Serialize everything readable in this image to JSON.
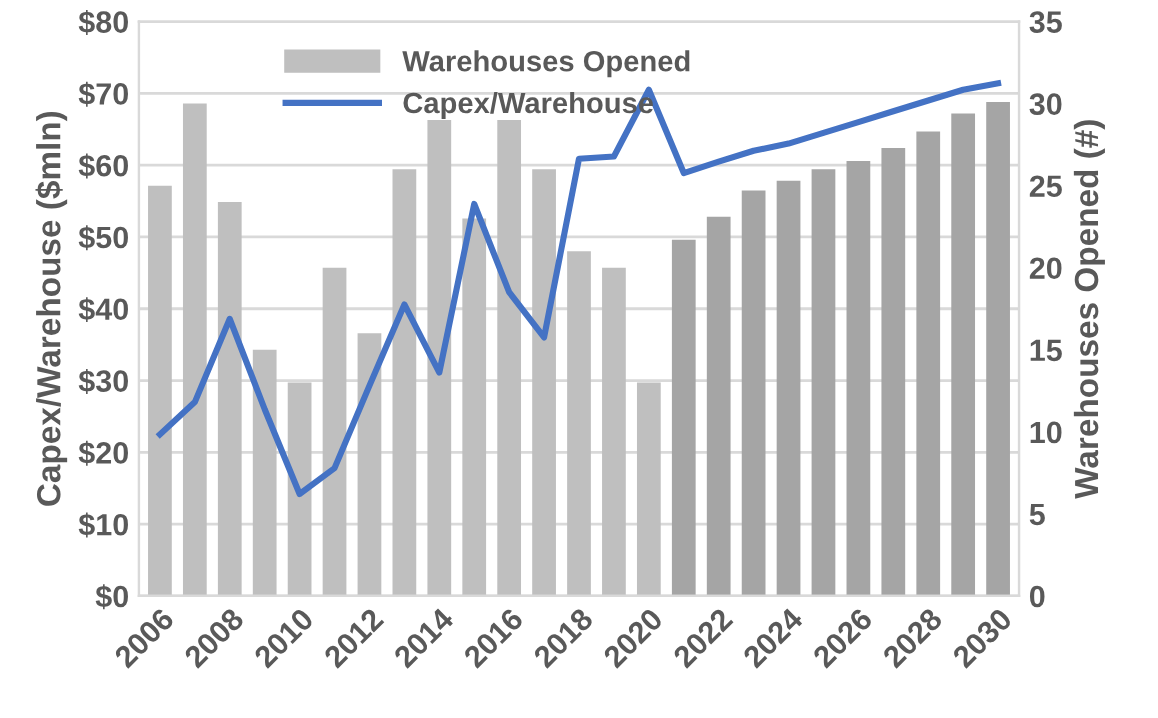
{
  "chart_data": {
    "type": "bar",
    "categories": [
      "2006",
      null,
      "2008",
      null,
      "2010",
      null,
      "2012",
      null,
      "2014",
      null,
      "2016",
      null,
      "2018",
      null,
      "2020",
      null,
      "2022",
      null,
      "2024",
      null,
      "2026",
      null,
      "2028",
      null,
      "2030"
    ],
    "ylabel": "Capex/Warehouse ($mln)",
    "y2label": "Warehouses Opened (#)",
    "ylim": [
      0,
      80
    ],
    "yticks": [
      {
        "value": 0,
        "label": "$0"
      },
      {
        "value": 10,
        "label": "$10"
      },
      {
        "value": 20,
        "label": "$20"
      },
      {
        "value": 30,
        "label": "$30"
      },
      {
        "value": 40,
        "label": "$40"
      },
      {
        "value": 50,
        "label": "$50"
      },
      {
        "value": 60,
        "label": "$60"
      },
      {
        "value": 70,
        "label": "$70"
      },
      {
        "value": 80,
        "label": "$80"
      }
    ],
    "y2lim": [
      0,
      35
    ],
    "y2ticks": [
      0,
      5,
      10,
      15,
      20,
      25,
      30,
      35
    ],
    "grid": "y",
    "legend": "top left",
    "series": [
      {
        "name": "Warehouses Opened",
        "axis": "y2",
        "color": "#bfbfbf",
        "colors": [
          "#bfbfbf",
          "#bfbfbf",
          "#bfbfbf",
          "#bfbfbf",
          "#bfbfbf",
          "#bfbfbf",
          "#bfbfbf",
          "#bfbfbf",
          "#bfbfbf",
          "#bfbfbf",
          "#bfbfbf",
          "#bfbfbf",
          "#bfbfbf",
          "#bfbfbf",
          "#bfbfbf",
          "#a5a5a5",
          "#a5a5a5",
          "#a5a5a5",
          "#a5a5a5",
          "#a5a5a5",
          "#a5a5a5",
          "#a5a5a5",
          "#a5a5a5",
          "#a5a5a5",
          "#a5a5a5"
        ],
        "values": [
          25,
          30,
          24,
          15,
          13,
          20,
          16,
          26,
          29,
          23,
          29,
          26,
          21,
          20,
          13,
          21.7,
          23.1,
          24.7,
          25.3,
          26,
          26.5,
          27.3,
          28.3,
          29.4,
          30.1
        ]
      },
      {
        "name": "Capex/Warehouse",
        "type": "line",
        "axis": "y",
        "color": "#4472c4",
        "marker": "none",
        "line_style": "solid",
        "values": [
          22.5,
          27,
          38.6,
          26,
          14.2,
          17.8,
          29.3,
          40.6,
          31.1,
          54.6,
          42.3,
          36,
          60.9,
          61.2,
          70.5,
          58.9,
          60.5,
          62,
          63,
          64.5,
          66,
          67.5,
          69,
          70.5,
          71.4
        ]
      }
    ]
  }
}
